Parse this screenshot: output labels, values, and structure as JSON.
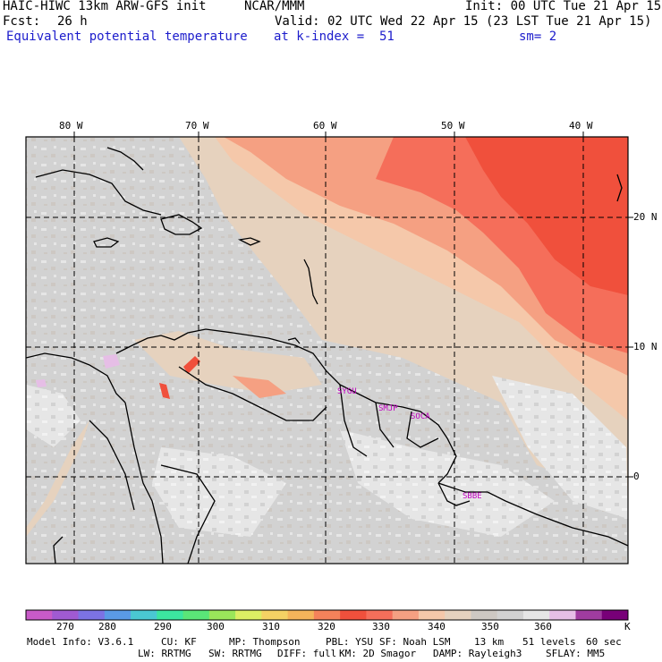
{
  "header": {
    "model_title": "HAIC-HIWC 13km ARW-GFS init",
    "center": "NCAR/MMM",
    "init": "Init: 00 UTC Tue 21 Apr 15",
    "fcst_label": "Fcst:",
    "fcst_value": "26 h",
    "valid": "Valid: 02 UTC Wed 22 Apr 15 (23 LST Tue 21 Apr 15)",
    "field": "Equivalent potential temperature",
    "level": "at k-index =  51",
    "smoothing": "sm= 2"
  },
  "map": {
    "lon_labels": [
      "80 W",
      "70 W",
      "60 W",
      "50 W",
      "40 W"
    ],
    "lat_labels": [
      "20 N",
      "10 N",
      "0"
    ],
    "stations": [
      "SYGU",
      "SMJP",
      "SOCA",
      "SBBE"
    ]
  },
  "colorbar": {
    "colors": [
      "#c85ac8",
      "#a05ad2",
      "#7c72e4",
      "#5a9ae6",
      "#4ac8d2",
      "#3ce6a0",
      "#5ae678",
      "#9ae65a",
      "#dcee64",
      "#f5d264",
      "#f5b45a",
      "#f5825a",
      "#f0503c",
      "#f56e5a",
      "#f5a082",
      "#f5c8aa",
      "#e6d2be",
      "#cdc8c3",
      "#d2d2d2",
      "#e6e6e6",
      "#e6bee6",
      "#a03ca0",
      "#780078"
    ],
    "labels": [
      "270",
      "280",
      "290",
      "300",
      "310",
      "320",
      "330",
      "340",
      "350",
      "360"
    ],
    "unit": "K"
  },
  "footer": {
    "line1": [
      "Model Info: V3.6.1",
      "CU: KF",
      "MP: Thompson",
      "PBL: YSU",
      "SF: Noah LSM",
      "13 km",
      "51 levels",
      "60 sec"
    ],
    "line2": [
      "LW: RRTMG",
      "SW: RRTMG",
      "DIFF: full",
      "KM: 2D Smagor",
      "DAMP: Rayleigh3",
      "SFLAY: MM5"
    ]
  }
}
